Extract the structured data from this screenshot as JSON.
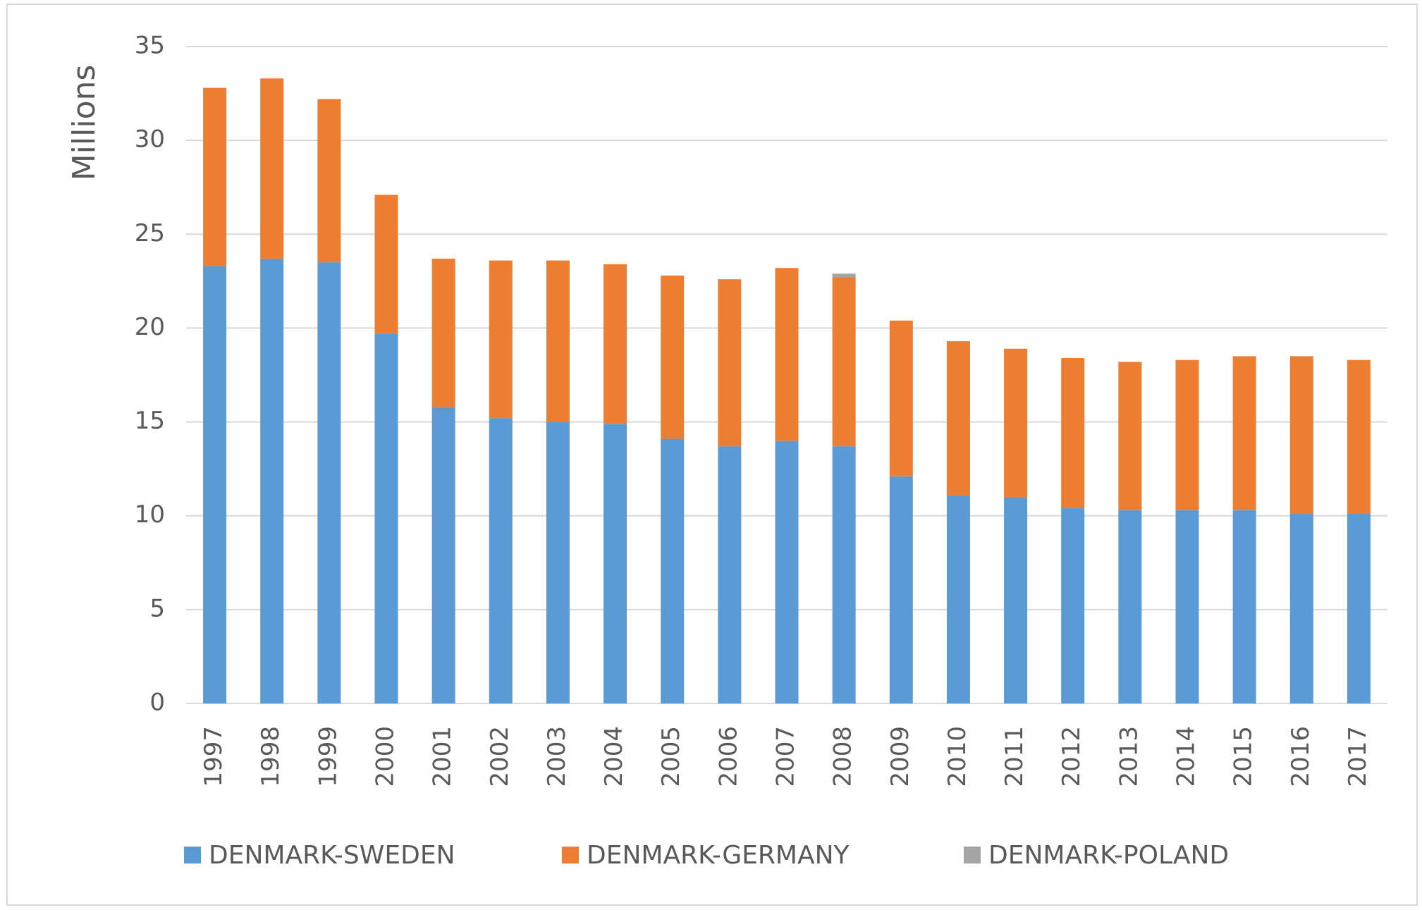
{
  "chart_data": {
    "type": "stacked_bar",
    "y_label": "Millions",
    "categories": [
      "1997",
      "1998",
      "1999",
      "2000",
      "2001",
      "2002",
      "2003",
      "2004",
      "2005",
      "2006",
      "2007",
      "2008",
      "2009",
      "2010",
      "2011",
      "2012",
      "2013",
      "2014",
      "2015",
      "2016",
      "2017"
    ],
    "series": [
      {
        "name": "DENMARK-SWEDEN",
        "color": "#5b9bd5",
        "values": [
          23.3,
          23.7,
          23.5,
          19.7,
          15.8,
          15.2,
          15.0,
          14.9,
          14.1,
          13.7,
          14.0,
          13.7,
          12.1,
          11.1,
          11.0,
          10.4,
          10.3,
          10.3,
          10.3,
          10.1,
          10.1
        ]
      },
      {
        "name": "DENMARK-GERMANY",
        "color": "#ed7d31",
        "values": [
          9.5,
          9.6,
          8.7,
          7.4,
          7.9,
          8.4,
          8.6,
          8.5,
          8.7,
          8.9,
          9.2,
          9.0,
          8.3,
          8.2,
          7.9,
          8.0,
          7.9,
          8.0,
          8.2,
          8.4,
          8.2
        ]
      },
      {
        "name": "DENMARK-POLAND",
        "color": "#a5a5a5",
        "values": [
          0,
          0,
          0,
          0,
          0,
          0,
          0,
          0,
          0,
          0,
          0,
          0.2,
          0,
          0,
          0,
          0,
          0,
          0,
          0,
          0,
          0
        ]
      }
    ],
    "ylim": [
      0,
      35
    ],
    "yticks": [
      0,
      5,
      10,
      15,
      20,
      25,
      30,
      35
    ],
    "grid": true,
    "legend": "bottom"
  }
}
